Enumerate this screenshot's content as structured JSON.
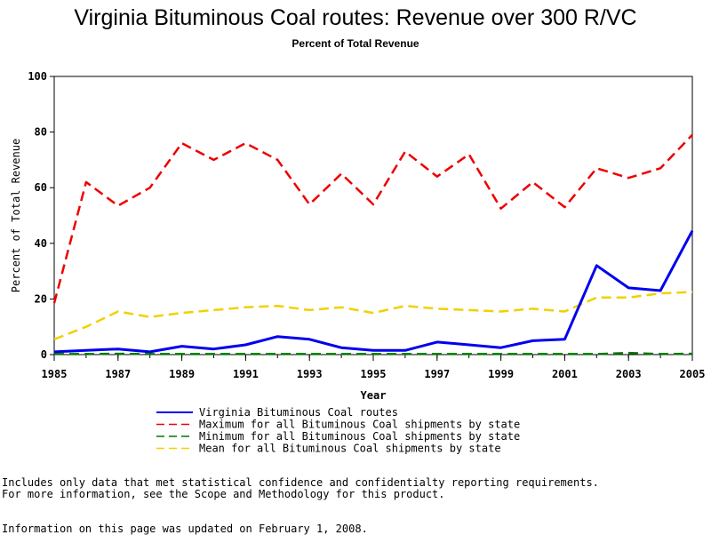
{
  "title": "Virginia Bituminous Coal routes: Revenue over 300 R/VC",
  "subtitle": "Percent of Total Revenue",
  "chart_data": {
    "type": "line",
    "xlabel": "Year",
    "ylabel": "Percent of Total Revenue",
    "xlim": [
      1985,
      2005
    ],
    "ylim": [
      0,
      100
    ],
    "x_ticks": [
      "1985",
      "1987",
      "1989",
      "1991",
      "1993",
      "1995",
      "1997",
      "1999",
      "2001",
      "2003",
      "2005"
    ],
    "y_ticks": [
      "0",
      "20",
      "40",
      "60",
      "80",
      "100"
    ],
    "x": [
      1985,
      1986,
      1987,
      1988,
      1989,
      1990,
      1991,
      1992,
      1993,
      1994,
      1995,
      1996,
      1997,
      1998,
      1999,
      2000,
      2001,
      2002,
      2003,
      2004,
      2005
    ],
    "legend_position": "bottom",
    "series": [
      {
        "name": "Virginia Bituminous Coal routes",
        "color": "#0000ee",
        "style": "solid",
        "values": [
          1.0,
          1.5,
          2.0,
          1.0,
          3.0,
          2.0,
          3.5,
          6.5,
          5.5,
          2.5,
          1.5,
          1.5,
          4.5,
          3.5,
          2.5,
          5.0,
          5.5,
          32.0,
          24.0,
          23.0,
          44.5
        ]
      },
      {
        "name": "Maximum for all Bituminous Coal shipments by state",
        "color": "#ee0000",
        "style": "dashed",
        "values": [
          18.5,
          62.0,
          53.5,
          60.0,
          76.0,
          70.0,
          76.0,
          70.0,
          54.0,
          65.0,
          54.0,
          73.0,
          64.0,
          72.0,
          52.5,
          62.0,
          53.0,
          67.0,
          63.5,
          67.0,
          79.0
        ]
      },
      {
        "name": "Minimum for all Bituminous Coal shipments by state",
        "color": "#007700",
        "style": "dashed",
        "values": [
          0.2,
          0.2,
          0.3,
          0.2,
          0.2,
          0.2,
          0.2,
          0.2,
          0.2,
          0.2,
          0.2,
          0.2,
          0.2,
          0.2,
          0.2,
          0.2,
          0.2,
          0.2,
          0.6,
          0.2,
          0.3
        ]
      },
      {
        "name": "Mean for all Bituminous Coal shipments by state",
        "color": "#f2d000",
        "style": "dashed",
        "values": [
          5.5,
          10.0,
          15.5,
          13.5,
          15.0,
          16.0,
          17.0,
          17.5,
          16.0,
          17.0,
          15.0,
          17.5,
          16.5,
          16.0,
          15.5,
          16.5,
          15.5,
          20.5,
          20.5,
          22.0,
          22.5
        ]
      }
    ]
  },
  "notes": {
    "line1": "Includes only data that met statistical confidence and confidentialty reporting requirements.",
    "line2": "For more information, see the Scope and Methodology for this product.",
    "updated": "Information on this page was updated on February 1, 2008."
  }
}
